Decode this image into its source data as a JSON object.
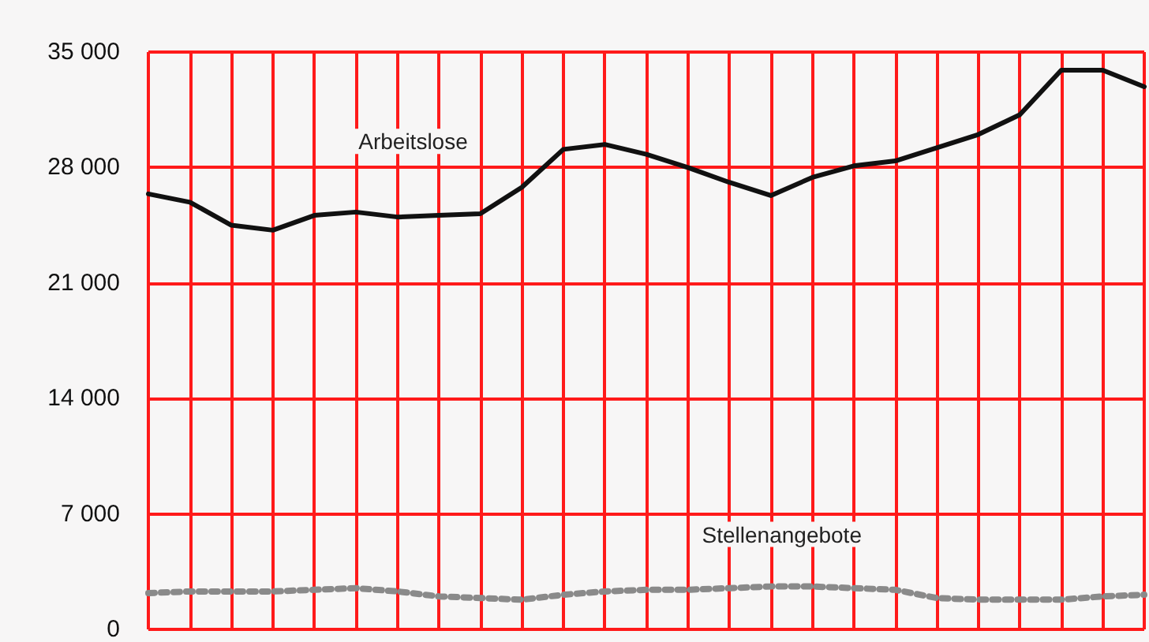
{
  "chart_data": {
    "type": "line",
    "categories": [
      null,
      null,
      null,
      null,
      null,
      null,
      null,
      null,
      null,
      null,
      null,
      null,
      null,
      null,
      null,
      null,
      null,
      null,
      null,
      null,
      null,
      null,
      null,
      null,
      null
    ],
    "ylim": [
      0,
      35000
    ],
    "yticks": [
      {
        "value": 0,
        "label": "0"
      },
      {
        "value": 7000,
        "label": "7 000"
      },
      {
        "value": 14000,
        "label": "14 000"
      },
      {
        "value": 21000,
        "label": "21 000"
      },
      {
        "value": 28000,
        "label": "28 000"
      },
      {
        "value": 35000,
        "label": "35 000"
      }
    ],
    "grid": true,
    "legend": false,
    "series": [
      {
        "name": "Arbeitslose",
        "color": "#111111",
        "line_style": "solid",
        "values": [
          26400,
          25900,
          24500,
          24200,
          25100,
          25300,
          25000,
          25100,
          25200,
          26800,
          29100,
          29400,
          28800,
          28000,
          27100,
          26300,
          27400,
          28100,
          28400,
          29200,
          30000,
          31200,
          33900,
          33900,
          32900
        ]
      },
      {
        "name": "Stellenangebote",
        "color": "#8a8a8a",
        "line_style": "dotted",
        "values": [
          2200,
          2300,
          2300,
          2300,
          2400,
          2500,
          2300,
          2000,
          1900,
          1800,
          2100,
          2300,
          2400,
          2400,
          2500,
          2600,
          2600,
          2500,
          2400,
          1900,
          1800,
          1800,
          1800,
          2000,
          2100
        ]
      }
    ]
  }
}
